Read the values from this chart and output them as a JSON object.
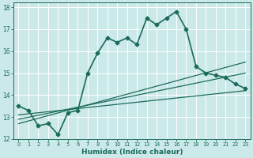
{
  "xlabel": "Humidex (Indice chaleur)",
  "ylabel": "",
  "xlim": [
    -0.5,
    23.5
  ],
  "ylim": [
    12,
    18.2
  ],
  "yticks": [
    12,
    13,
    14,
    15,
    16,
    17,
    18
  ],
  "xticks": [
    0,
    1,
    2,
    3,
    4,
    5,
    6,
    7,
    8,
    9,
    10,
    11,
    12,
    13,
    14,
    15,
    16,
    17,
    18,
    19,
    20,
    21,
    22,
    23
  ],
  "bg_color": "#cce9e9",
  "line_color": "#1a6b5a",
  "grid_color": "#ffffff",
  "series": [
    {
      "x": [
        0,
        1,
        2,
        3,
        4,
        5,
        6,
        7,
        8,
        9,
        10,
        11,
        12,
        13,
        14,
        15,
        16,
        17,
        18,
        19,
        20,
        21,
        22,
        23
      ],
      "y": [
        13.5,
        13.3,
        12.6,
        12.7,
        12.2,
        13.2,
        13.3,
        15.0,
        15.9,
        16.6,
        16.4,
        16.6,
        16.3,
        17.5,
        17.2,
        17.5,
        17.8,
        17.0,
        15.3,
        15.0,
        14.9,
        14.8,
        14.5,
        14.3
      ],
      "marker": "D",
      "markersize": 2.5,
      "linewidth": 1.2
    },
    {
      "x": [
        0,
        23
      ],
      "y": [
        13.1,
        14.2
      ],
      "marker": null,
      "markersize": 0,
      "linewidth": 0.9
    },
    {
      "x": [
        0,
        23
      ],
      "y": [
        12.9,
        15.0
      ],
      "marker": null,
      "markersize": 0,
      "linewidth": 0.9
    },
    {
      "x": [
        0,
        23
      ],
      "y": [
        12.7,
        15.5
      ],
      "marker": null,
      "markersize": 0,
      "linewidth": 0.9
    }
  ]
}
